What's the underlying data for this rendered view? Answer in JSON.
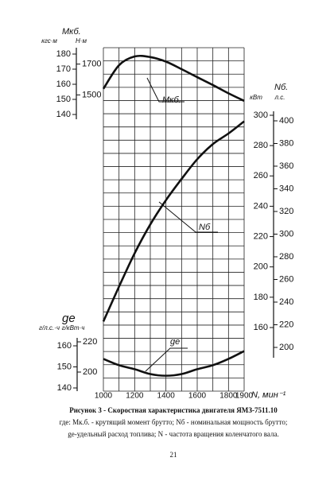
{
  "chart_data": {
    "type": "line",
    "x_label": "N, мин⁻¹",
    "x": [
      1000,
      1100,
      1200,
      1300,
      1400,
      1500,
      1600,
      1700,
      1800,
      1900
    ],
    "xlim": [
      1000,
      1900
    ],
    "xticks": [
      1000,
      1200,
      1400,
      1600,
      1800,
      1900
    ],
    "panels": [
      {
        "title": "Мкб.",
        "unit": "кгс·м",
        "ylim": [
          140,
          180
        ],
        "yticks": [
          140,
          150,
          160,
          170,
          180
        ],
        "unit2": "Н·м",
        "y2lim": [
          1373,
          1765
        ],
        "y2ticks": [
          1500,
          1700
        ],
        "series": {
          "name": "Мкб.",
          "color": "#111111",
          "values": [
            157,
            172.6,
            178.4,
            178,
            175,
            170,
            164.7,
            159.5,
            154,
            149
          ]
        }
      },
      {
        "title": "Nб.",
        "unit": "кВт",
        "ylim": [
          160,
          300
        ],
        "yticks": [
          160,
          180,
          200,
          220,
          240,
          260,
          280,
          300
        ],
        "unit2": "л.с.",
        "y2lim": [
          200,
          400
        ],
        "y2ticks": [
          200,
          220,
          240,
          260,
          280,
          300,
          320,
          340,
          360,
          380,
          400
        ],
        "series": {
          "name": "Nб",
          "color": "#111111",
          "values": [
            164,
            187,
            209,
            228,
            244,
            258,
            271,
            281,
            288,
            296
          ]
        }
      },
      {
        "title": "ge",
        "unit": "г/л.с.·ч",
        "ylim": [
          140,
          160
        ],
        "yticks": [
          140,
          150,
          160
        ],
        "unit2": "г/кВт·ч",
        "y2lim": [
          200,
          220
        ],
        "y2ticks": [
          200,
          220
        ],
        "series": {
          "name": "ge",
          "color": "#111111",
          "values": [
            153.8,
            150.8,
            148.9,
            146.6,
            145.8,
            146.6,
            148.9,
            150.8,
            153.8,
            157.5
          ]
        }
      }
    ]
  },
  "caption": {
    "title": "Рисунок 3 - Скоростная характеристика двигателя ЯМЗ-7511.10",
    "line1": "где: Мк.б. - крутящий момент брутто; Nб - номинальная мощность брутто;",
    "line2": "ge-удельный расход топлива; N - частота вращения коленчатого вала."
  },
  "page_number": "21"
}
